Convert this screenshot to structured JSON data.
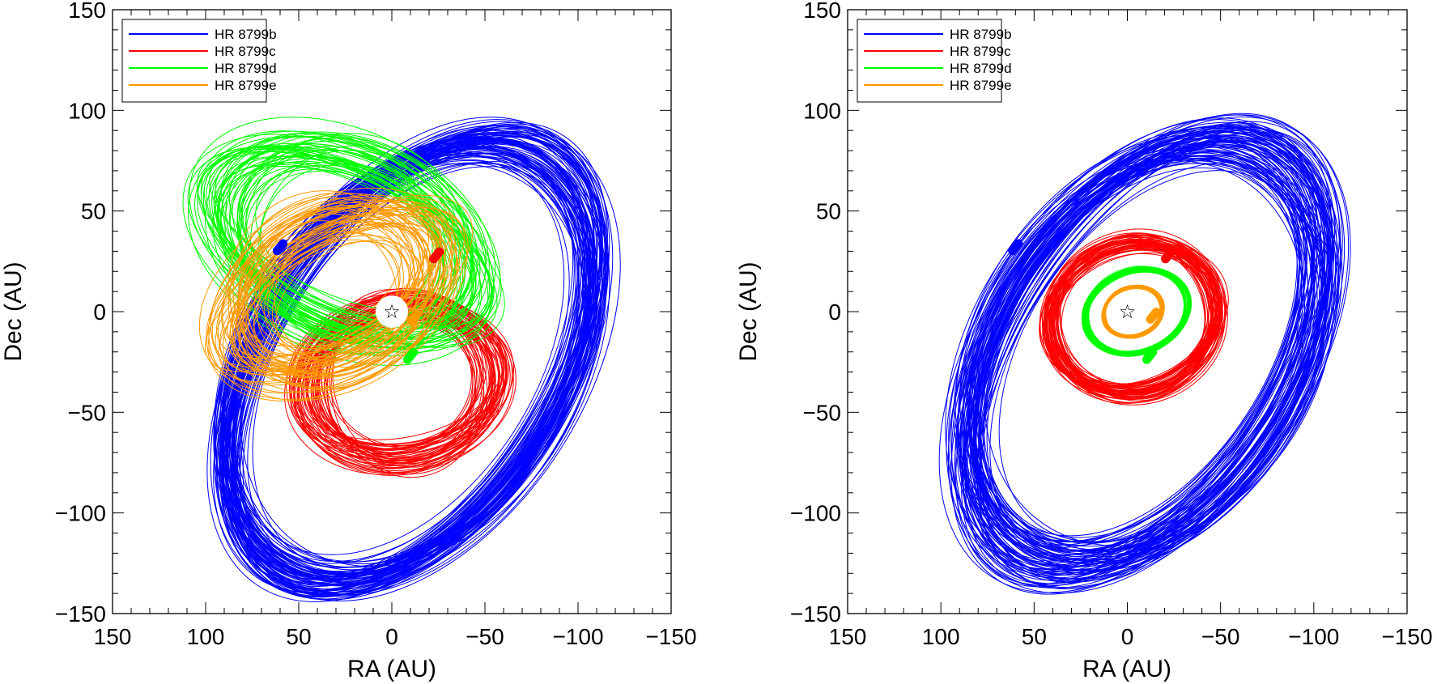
{
  "chart_data": [
    {
      "type": "line",
      "panel": "left",
      "title": "",
      "xlabel": "RA (AU)",
      "ylabel": "Dec (AU)",
      "xlim": [
        150,
        -150
      ],
      "ylim": [
        -150,
        150
      ],
      "x_ticks": [
        150,
        100,
        50,
        0,
        -50,
        -100,
        -150
      ],
      "y_ticks": [
        -150,
        -100,
        -50,
        0,
        50,
        100,
        150
      ],
      "x_tick_labels": [
        "150",
        "100",
        "50",
        "0",
        "−50",
        "−100",
        "−150"
      ],
      "y_tick_labels": [
        "−150",
        "−100",
        "−50",
        "0",
        "50",
        "100",
        "150"
      ],
      "legend_position": "top-left",
      "star_marker": {
        "ra": 0,
        "dec": 0,
        "symbol": "☆"
      },
      "series": [
        {
          "name": "HR 8799b",
          "color": "#0000ff",
          "orbit": {
            "cx_ra": -10,
            "cy_dec": -25,
            "a": 130,
            "b": 80,
            "tilt_deg": 57,
            "count": 90,
            "spread": 0.1
          },
          "planet_position": {
            "ra": 60,
            "dec": 32
          }
        },
        {
          "name": "HR 8799c",
          "color": "#ff0000",
          "orbit": {
            "cx_ra": -5,
            "cy_dec": -35,
            "a": 50,
            "b": 40,
            "tilt_deg": 10,
            "count": 55,
            "spread": 0.2
          },
          "planet_position": {
            "ra": -24,
            "dec": 28
          }
        },
        {
          "name": "HR 8799d",
          "color": "#00ff00",
          "orbit": {
            "cx_ra": 25,
            "cy_dec": 35,
            "a": 70,
            "b": 45,
            "tilt_deg": -25,
            "count": 55,
            "spread": 0.25
          },
          "planet_position": {
            "ra": -10,
            "dec": -22
          }
        },
        {
          "name": "HR 8799e",
          "color": "#ff9900",
          "orbit": {
            "cx_ra": 30,
            "cy_dec": 10,
            "a": 58,
            "b": 38,
            "tilt_deg": 30,
            "count": 55,
            "spread": 0.3
          },
          "planet_position": {
            "ra": -12,
            "dec": -3
          }
        }
      ]
    },
    {
      "type": "line",
      "panel": "right",
      "title": "",
      "xlabel": "RA (AU)",
      "ylabel": "Dec (AU)",
      "xlim": [
        150,
        -150
      ],
      "ylim": [
        -150,
        150
      ],
      "x_ticks": [
        150,
        100,
        50,
        0,
        -50,
        -100,
        -150
      ],
      "y_ticks": [
        -150,
        -100,
        -50,
        0,
        50,
        100,
        150
      ],
      "x_tick_labels": [
        "150",
        "100",
        "50",
        "0",
        "−50",
        "−100",
        "−150"
      ],
      "y_tick_labels": [
        "−150",
        "−100",
        "−50",
        "0",
        "50",
        "100",
        "150"
      ],
      "legend_position": "top-left",
      "star_marker": {
        "ra": 0,
        "dec": 0,
        "symbol": "☆"
      },
      "series": [
        {
          "name": "HR 8799b",
          "color": "#0000ff",
          "orbit": {
            "cx_ra": -10,
            "cy_dec": -20,
            "a": 125,
            "b": 78,
            "tilt_deg": 57,
            "count": 90,
            "spread": 0.12
          },
          "planet_position": {
            "ra": 60,
            "dec": 32
          }
        },
        {
          "name": "HR 8799c",
          "color": "#ff0000",
          "orbit": {
            "cx_ra": -3,
            "cy_dec": -3,
            "a": 45,
            "b": 40,
            "tilt_deg": 20,
            "count": 60,
            "spread": 0.12
          },
          "planet_position": {
            "ra": -22,
            "dec": 28
          }
        },
        {
          "name": "HR 8799d",
          "color": "#00ff00",
          "orbit": {
            "cx_ra": -5,
            "cy_dec": 0,
            "a": 28,
            "b": 22,
            "tilt_deg": 20,
            "count": 45,
            "spread": 0.06
          },
          "planet_position": {
            "ra": -12,
            "dec": -22
          }
        },
        {
          "name": "HR 8799e",
          "color": "#ff9900",
          "orbit": {
            "cx_ra": -3,
            "cy_dec": 0,
            "a": 16,
            "b": 13,
            "tilt_deg": 20,
            "count": 30,
            "spread": 0.06
          },
          "planet_position": {
            "ra": -14,
            "dec": -2
          }
        }
      ]
    }
  ]
}
